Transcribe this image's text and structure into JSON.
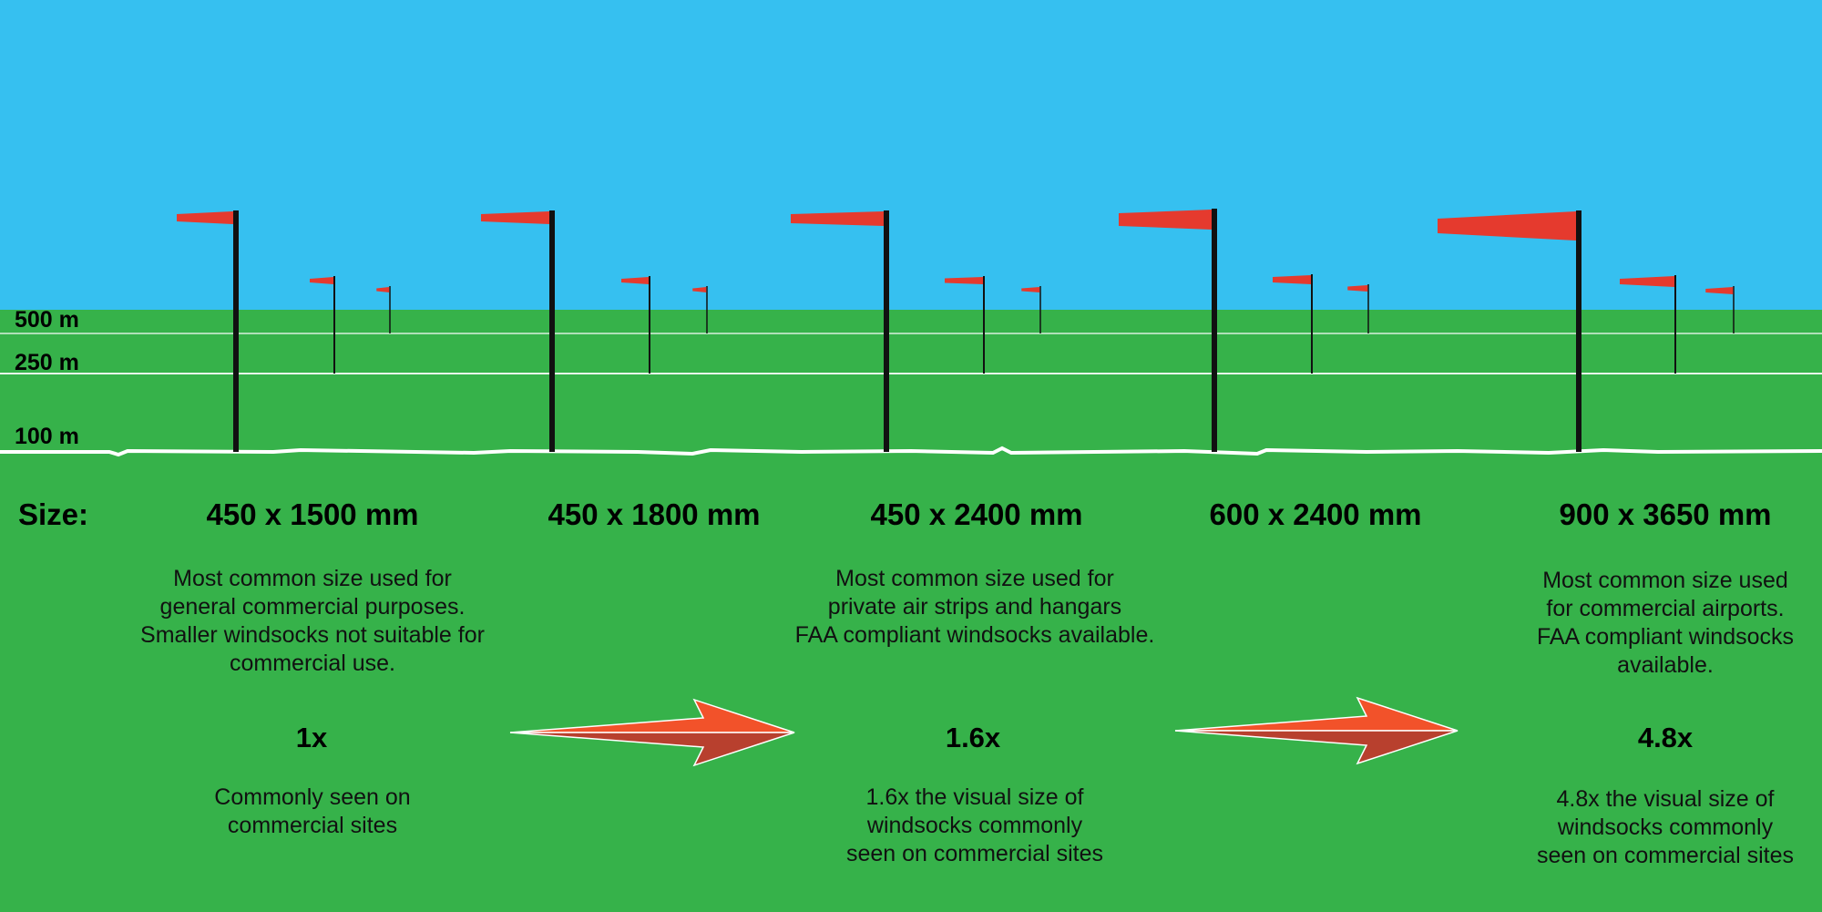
{
  "colors": {
    "sky": "#36c0f0",
    "grass": "#36b24a",
    "windsock": "#e53a2e",
    "pole": "#111111",
    "arrow_light": "#f2522a",
    "arrow_dark": "#b8402e"
  },
  "distance_labels": [
    "500 m",
    "250 m",
    "100 m"
  ],
  "size_heading": "Size:",
  "sizes": [
    {
      "dimension": "450 x 1500 mm",
      "description": [
        "Most common size used for",
        "general commercial purposes.",
        "Smaller windsocks not suitable for",
        "commercial use."
      ],
      "factor": "1x",
      "factor_note": [
        "Commonly seen on",
        "commercial sites"
      ]
    },
    {
      "dimension": "450 x 1800 mm"
    },
    {
      "dimension": "450 x 2400 mm",
      "description": [
        "Most common size used for",
        "private air strips and hangars",
        "FAA compliant windsocks available."
      ],
      "factor": "1.6x",
      "factor_note": [
        "1.6x the visual size of",
        "windsocks commonly",
        "seen on commercial sites"
      ]
    },
    {
      "dimension": "600 x 2400 mm"
    },
    {
      "dimension": "900 x 3650 mm",
      "description": [
        "Most common size used",
        "for commercial airports.",
        "FAA compliant windsocks",
        "available."
      ],
      "factor": "4.8x",
      "factor_note": [
        "4.8x the visual size of",
        "windsocks commonly",
        "seen on commercial sites"
      ]
    }
  ],
  "icons": [
    "windsock-icon",
    "arrow-icon"
  ]
}
